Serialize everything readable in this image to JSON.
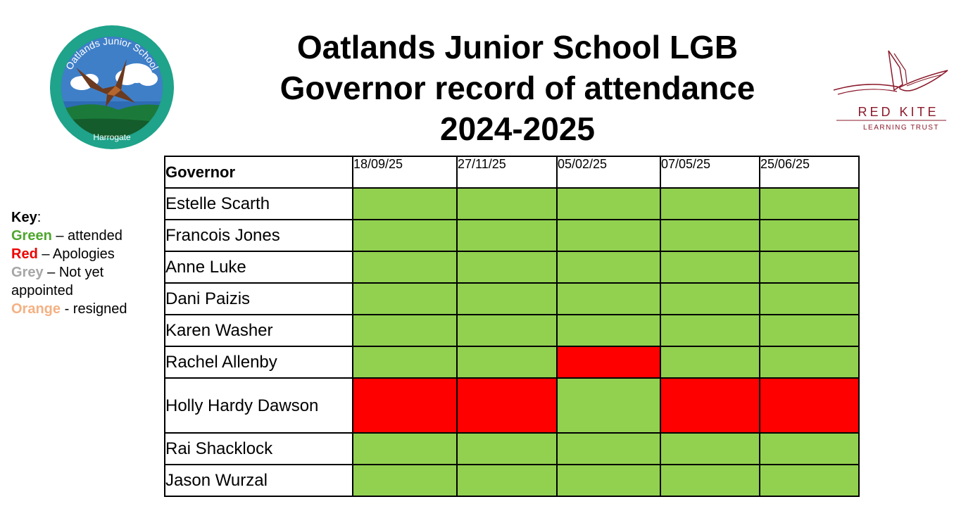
{
  "title": {
    "line1": "Oatlands Junior School LGB",
    "line2": "Governor record of attendance",
    "line3": "2024-2025"
  },
  "logos": {
    "school": {
      "arc_text": "Oatlands Junior School",
      "bottom_text": "Harrogate"
    },
    "trust": {
      "line1": "RED KITE",
      "line2": "LEARNING TRUST"
    }
  },
  "key": {
    "title": "Key",
    "items": [
      {
        "label": "Green",
        "desc": " – attended",
        "color": "#4ea72e"
      },
      {
        "label": "Red",
        "desc": " – Apologies",
        "color": "#ee0000"
      },
      {
        "label": "Grey",
        "desc": " – Not yet appointed",
        "color": "#a6a6a6"
      },
      {
        "label": "Orange",
        "desc": " - resigned",
        "color": "#f4b183"
      }
    ]
  },
  "status_colors": {
    "attended": "#92d050",
    "apologies": "#ff0000",
    "not_appointed": "#a6a6a6",
    "resigned": "#f4b183"
  },
  "table": {
    "header": "Governor",
    "dates": [
      "18/09/25",
      "27/11/25",
      "05/02/25",
      "07/05/25",
      "25/06/25"
    ],
    "rows": [
      {
        "name": "Estelle Scarth",
        "status": [
          "attended",
          "attended",
          "attended",
          "attended",
          "attended"
        ]
      },
      {
        "name": "Francois Jones",
        "status": [
          "attended",
          "attended",
          "attended",
          "attended",
          "attended"
        ]
      },
      {
        "name": "Anne Luke",
        "status": [
          "attended",
          "attended",
          "attended",
          "attended",
          "attended"
        ]
      },
      {
        "name": "Dani Paizis",
        "status": [
          "attended",
          "attended",
          "attended",
          "attended",
          "attended"
        ]
      },
      {
        "name": "Karen Washer",
        "status": [
          "attended",
          "attended",
          "attended",
          "attended",
          "attended"
        ]
      },
      {
        "name": "Rachel Allenby",
        "status": [
          "attended",
          "attended",
          "apologies",
          "attended",
          "attended"
        ]
      },
      {
        "name": "Holly Hardy Dawson",
        "status": [
          "apologies",
          "apologies",
          "attended",
          "apologies",
          "apologies"
        ]
      },
      {
        "name": "Rai Shacklock",
        "status": [
          "attended",
          "attended",
          "attended",
          "attended",
          "attended"
        ]
      },
      {
        "name": "Jason Wurzal",
        "status": [
          "attended",
          "attended",
          "attended",
          "attended",
          "attended"
        ]
      }
    ]
  }
}
